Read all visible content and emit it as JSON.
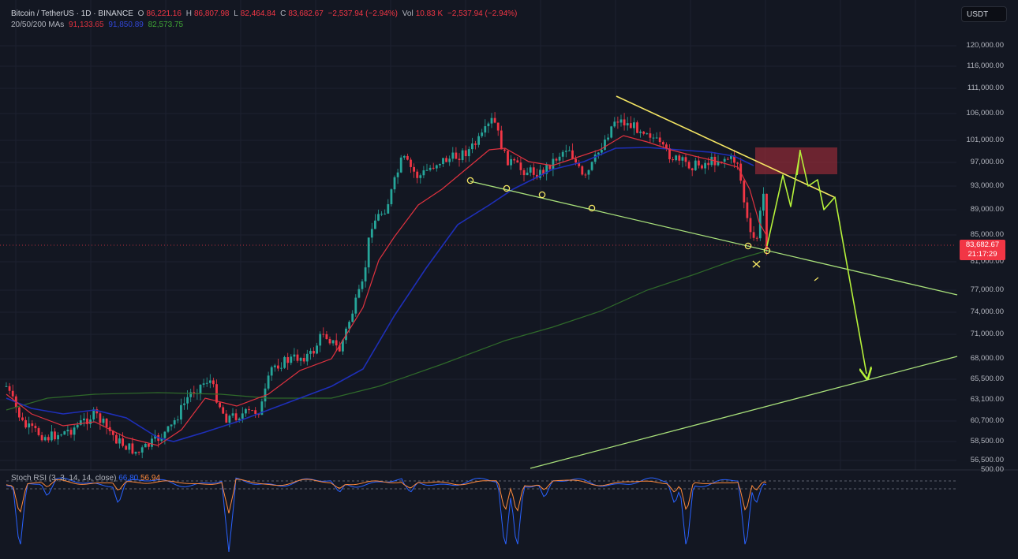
{
  "header": {
    "symbol": "Bitcoin / TetherUS · 1D · BINANCE",
    "open_label": "O",
    "open": "86,221.16",
    "high_label": "H",
    "high": "86,807.98",
    "low_label": "L",
    "low": "82,464.84",
    "close_label": "C",
    "close": "83,682.67",
    "change": "−2,537.94 (−2.94%)",
    "vol_label": "Vol",
    "volume": "10.83 K",
    "vol_change": "−2,537.94 (−2.94%)"
  },
  "ma_header": {
    "label": "20/50/200 MAs",
    "ma20": "91,133.65",
    "ma50": "91,850.89",
    "ma200": "82,573.75"
  },
  "currency_button": "USDT",
  "price_axis": [
    "120,000.00",
    "116,000.00",
    "111,000.00",
    "106,000.00",
    "101,000.00",
    "97,000.00",
    "93,000.00",
    "89,000.00",
    "85,000.00",
    "81,000.00",
    "77,000.00",
    "74,000.00",
    "71,000.00",
    "68,000.00",
    "65,500.00",
    "63,100.00",
    "60,700.00",
    "58,500.00",
    "56,500.00"
  ],
  "current_price_tag": {
    "price": "83,682.67",
    "countdown": "21:17:29"
  },
  "rsi": {
    "label": "Stoch RSI (3, 3, 14, 14, close)",
    "k": "66.80",
    "d": "56.94",
    "axis_top": "500.00"
  },
  "colors": {
    "background": "#131722",
    "bull": "#26a69a",
    "bear": "#f23645",
    "ma20": "#e0323f",
    "ma50": "#1e2fb8",
    "ma200": "#2f6a2a",
    "resistance": "#f5e663",
    "trend_green": "#a8e07a",
    "projection": "#b6f23a",
    "supply_zone": "#8b2a35",
    "rsi_k": "#2962ff",
    "rsi_d": "#ff8a3d"
  },
  "chart_data": {
    "type": "candlestick",
    "symbol": "Bitcoin / TetherUS",
    "interval": "1D",
    "ylim": [
      55000,
      122000
    ],
    "moving_averages": [
      {
        "name": "20",
        "value": 91133.65
      },
      {
        "name": "50",
        "value": 91850.89
      },
      {
        "name": "200",
        "value": 82573.75
      }
    ],
    "last": {
      "open": 86221.16,
      "high": 86807.98,
      "low": 82464.84,
      "close": 83682.67
    },
    "supply_zone": [
      95200,
      99800
    ]
  }
}
